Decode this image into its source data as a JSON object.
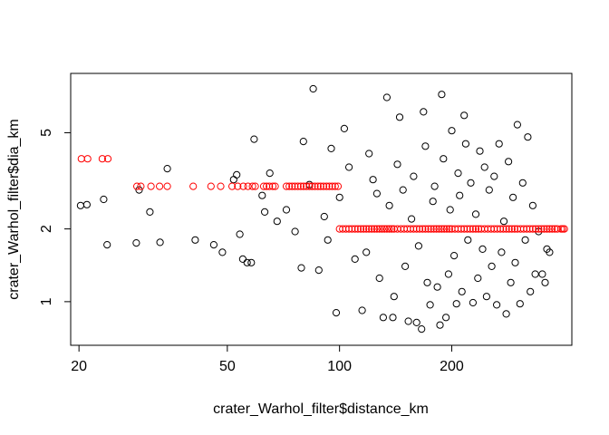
{
  "chart_data": {
    "type": "scatter",
    "title": "",
    "xlabel": "crater_Warhol_filter$distance_km",
    "ylabel": "crater_Warhol_filter$dia_km",
    "xscale": "log",
    "yscale": "log",
    "xlim": [
      19,
      420
    ],
    "ylim": [
      0.66,
      8.8
    ],
    "xticks": [
      20,
      50,
      100,
      200
    ],
    "yticks": [
      1,
      2,
      5
    ],
    "xtick_labels": [
      "20",
      "50",
      "100",
      "200"
    ],
    "ytick_labels": [
      "1",
      "2",
      "5"
    ],
    "grid": false,
    "legend": "none",
    "series": [
      {
        "color": "#000000",
        "marker": "open-circle",
        "points": [
          [
            20.2,
            2.5
          ],
          [
            21,
            2.52
          ],
          [
            23.3,
            2.65
          ],
          [
            23.8,
            1.72
          ],
          [
            28.5,
            1.75
          ],
          [
            29,
            2.9
          ],
          [
            31,
            2.35
          ],
          [
            33,
            1.76
          ],
          [
            34.5,
            3.55
          ],
          [
            41,
            1.8
          ],
          [
            46,
            1.72
          ],
          [
            48.5,
            1.6
          ],
          [
            52,
            3.2
          ],
          [
            53,
            3.35
          ],
          [
            54,
            1.9
          ],
          [
            55,
            1.5
          ],
          [
            56.5,
            1.45
          ],
          [
            58,
            1.45
          ],
          [
            59,
            4.7
          ],
          [
            62,
            2.75
          ],
          [
            63,
            2.35
          ],
          [
            65,
            3.4
          ],
          [
            68,
            2.15
          ],
          [
            72,
            2.4
          ],
          [
            76,
            1.95
          ],
          [
            79,
            1.38
          ],
          [
            80,
            4.6
          ],
          [
            83,
            3.05
          ],
          [
            85,
            7.6
          ],
          [
            88,
            1.35
          ],
          [
            91,
            2.25
          ],
          [
            93,
            1.8
          ],
          [
            95,
            4.3
          ],
          [
            98,
            0.9
          ],
          [
            100,
            2.7
          ],
          [
            103,
            5.2
          ],
          [
            106,
            3.6
          ],
          [
            110,
            1.5
          ],
          [
            115,
            0.92
          ],
          [
            118,
            1.6
          ],
          [
            120,
            4.1
          ],
          [
            123,
            3.2
          ],
          [
            126,
            2.8
          ],
          [
            128,
            1.25
          ],
          [
            131,
            0.86
          ],
          [
            134,
            7.0
          ],
          [
            136,
            2.5
          ],
          [
            139,
            0.86
          ],
          [
            140,
            1.05
          ],
          [
            143,
            3.7
          ],
          [
            145,
            5.8
          ],
          [
            148,
            2.9
          ],
          [
            150,
            1.4
          ],
          [
            153,
            0.83
          ],
          [
            156,
            2.2
          ],
          [
            158,
            3.3
          ],
          [
            161,
            0.82
          ],
          [
            163,
            1.7
          ],
          [
            166,
            0.77
          ],
          [
            168,
            6.1
          ],
          [
            170,
            4.4
          ],
          [
            172,
            1.2
          ],
          [
            175,
            0.97
          ],
          [
            178,
            2.6
          ],
          [
            180,
            3.0
          ],
          [
            183,
            1.15
          ],
          [
            186,
            0.8
          ],
          [
            188,
            7.2
          ],
          [
            190,
            3.9
          ],
          [
            193,
            0.86
          ],
          [
            196,
            1.3
          ],
          [
            198,
            2.4
          ],
          [
            200,
            5.1
          ],
          [
            203,
            1.55
          ],
          [
            206,
            0.98
          ],
          [
            208,
            3.4
          ],
          [
            210,
            2.75
          ],
          [
            213,
            1.1
          ],
          [
            216,
            5.9
          ],
          [
            218,
            4.5
          ],
          [
            221,
            1.8
          ],
          [
            225,
            3.1
          ],
          [
            228,
            0.99
          ],
          [
            232,
            2.3
          ],
          [
            235,
            1.25
          ],
          [
            238,
            4.2
          ],
          [
            242,
            1.65
          ],
          [
            245,
            3.6
          ],
          [
            248,
            1.05
          ],
          [
            252,
            2.9
          ],
          [
            256,
            1.4
          ],
          [
            260,
            3.3
          ],
          [
            264,
            0.97
          ],
          [
            268,
            4.5
          ],
          [
            272,
            1.6
          ],
          [
            276,
            2.15
          ],
          [
            280,
            0.89
          ],
          [
            284,
            3.8
          ],
          [
            288,
            1.2
          ],
          [
            292,
            2.7
          ],
          [
            296,
            1.45
          ],
          [
            300,
            5.4
          ],
          [
            305,
            0.98
          ],
          [
            310,
            3.1
          ],
          [
            315,
            1.8
          ],
          [
            320,
            4.8
          ],
          [
            325,
            1.1
          ],
          [
            330,
            2.5
          ],
          [
            335,
            1.3
          ],
          [
            342,
            1.95
          ],
          [
            350,
            1.3
          ],
          [
            356,
            1.2
          ],
          [
            360,
            1.65
          ],
          [
            366,
            1.6
          ]
        ]
      },
      {
        "color": "#ff0000",
        "marker": "open-circle",
        "points": [
          [
            20.3,
            3.9
          ],
          [
            21.1,
            3.9
          ],
          [
            23.1,
            3.9
          ],
          [
            23.9,
            3.9
          ],
          [
            28.6,
            3.0
          ],
          [
            29.3,
            3.0
          ],
          [
            31.2,
            3.0
          ],
          [
            32.9,
            3.0
          ],
          [
            34.5,
            3.0
          ],
          [
            40.5,
            3.0
          ],
          [
            45.2,
            3.0
          ],
          [
            48.0,
            3.0
          ],
          [
            51.5,
            3.0
          ],
          [
            53.3,
            3.0
          ],
          [
            55.2,
            3.0
          ],
          [
            56.8,
            3.0
          ],
          [
            58.4,
            3.0
          ],
          [
            59.4,
            3.0
          ],
          [
            62.6,
            3.0
          ],
          [
            63.7,
            3.0
          ],
          [
            64.8,
            3.0
          ],
          [
            66.2,
            3.0
          ],
          [
            67.2,
            3.0
          ],
          [
            72.0,
            3.0
          ],
          [
            73.3,
            3.0
          ],
          [
            74.6,
            3.0
          ],
          [
            75.9,
            3.0
          ],
          [
            77.3,
            3.0
          ],
          [
            78.7,
            3.0
          ],
          [
            80.1,
            3.0
          ],
          [
            81.5,
            3.0
          ],
          [
            83.0,
            3.0
          ],
          [
            84.4,
            3.0
          ],
          [
            85.9,
            3.0
          ],
          [
            87.5,
            3.0
          ],
          [
            89.0,
            3.0
          ],
          [
            90.6,
            3.0
          ],
          [
            92.3,
            3.0
          ],
          [
            93.9,
            3.0
          ],
          [
            95.6,
            3.0
          ],
          [
            97.3,
            3.0
          ],
          [
            99.1,
            3.0
          ],
          [
            100,
            2.0
          ],
          [
            102,
            2.0
          ],
          [
            104,
            2.0
          ],
          [
            106,
            2.0
          ],
          [
            108,
            2.0
          ],
          [
            110,
            2.0
          ],
          [
            112,
            2.0
          ],
          [
            114,
            2.0
          ],
          [
            116,
            2.0
          ],
          [
            118,
            2.0
          ],
          [
            120,
            2.0
          ],
          [
            122,
            2.0
          ],
          [
            124,
            2.0
          ],
          [
            126,
            2.0
          ],
          [
            128,
            2.0
          ],
          [
            130,
            2.0
          ],
          [
            132,
            2.0
          ],
          [
            134,
            2.0
          ],
          [
            136,
            2.0
          ],
          [
            138,
            2.0
          ],
          [
            140,
            2.0
          ],
          [
            143,
            2.0
          ],
          [
            146,
            2.0
          ],
          [
            149,
            2.0
          ],
          [
            152,
            2.0
          ],
          [
            155,
            2.0
          ],
          [
            158,
            2.0
          ],
          [
            161,
            2.0
          ],
          [
            164,
            2.0
          ],
          [
            167,
            2.0
          ],
          [
            170,
            2.0
          ],
          [
            173,
            2.0
          ],
          [
            176,
            2.0
          ],
          [
            179,
            2.0
          ],
          [
            182,
            2.0
          ],
          [
            185,
            2.0
          ],
          [
            188,
            2.0
          ],
          [
            191,
            2.0
          ],
          [
            194,
            2.0
          ],
          [
            197,
            2.0
          ],
          [
            200,
            2.0
          ],
          [
            204,
            2.0
          ],
          [
            208,
            2.0
          ],
          [
            212,
            2.0
          ],
          [
            216,
            2.0
          ],
          [
            220,
            2.0
          ],
          [
            224,
            2.0
          ],
          [
            228,
            2.0
          ],
          [
            232,
            2.0
          ],
          [
            236,
            2.0
          ],
          [
            240,
            2.0
          ],
          [
            245,
            2.0
          ],
          [
            250,
            2.0
          ],
          [
            255,
            2.0
          ],
          [
            260,
            2.0
          ],
          [
            265,
            2.0
          ],
          [
            270,
            2.0
          ],
          [
            275,
            2.0
          ],
          [
            280,
            2.0
          ],
          [
            285,
            2.0
          ],
          [
            290,
            2.0
          ],
          [
            295,
            2.0
          ],
          [
            300,
            2.0
          ],
          [
            306,
            2.0
          ],
          [
            312,
            2.0
          ],
          [
            318,
            2.0
          ],
          [
            324,
            2.0
          ],
          [
            330,
            2.0
          ],
          [
            336,
            2.0
          ],
          [
            342,
            2.0
          ],
          [
            348,
            2.0
          ],
          [
            354,
            2.0
          ],
          [
            360,
            2.0
          ],
          [
            366,
            2.0
          ],
          [
            372,
            2.0
          ],
          [
            378,
            2.0
          ],
          [
            384,
            2.0
          ],
          [
            393,
            2.0
          ],
          [
            397,
            2.0
          ],
          [
            401,
            2.0
          ]
        ]
      }
    ]
  }
}
